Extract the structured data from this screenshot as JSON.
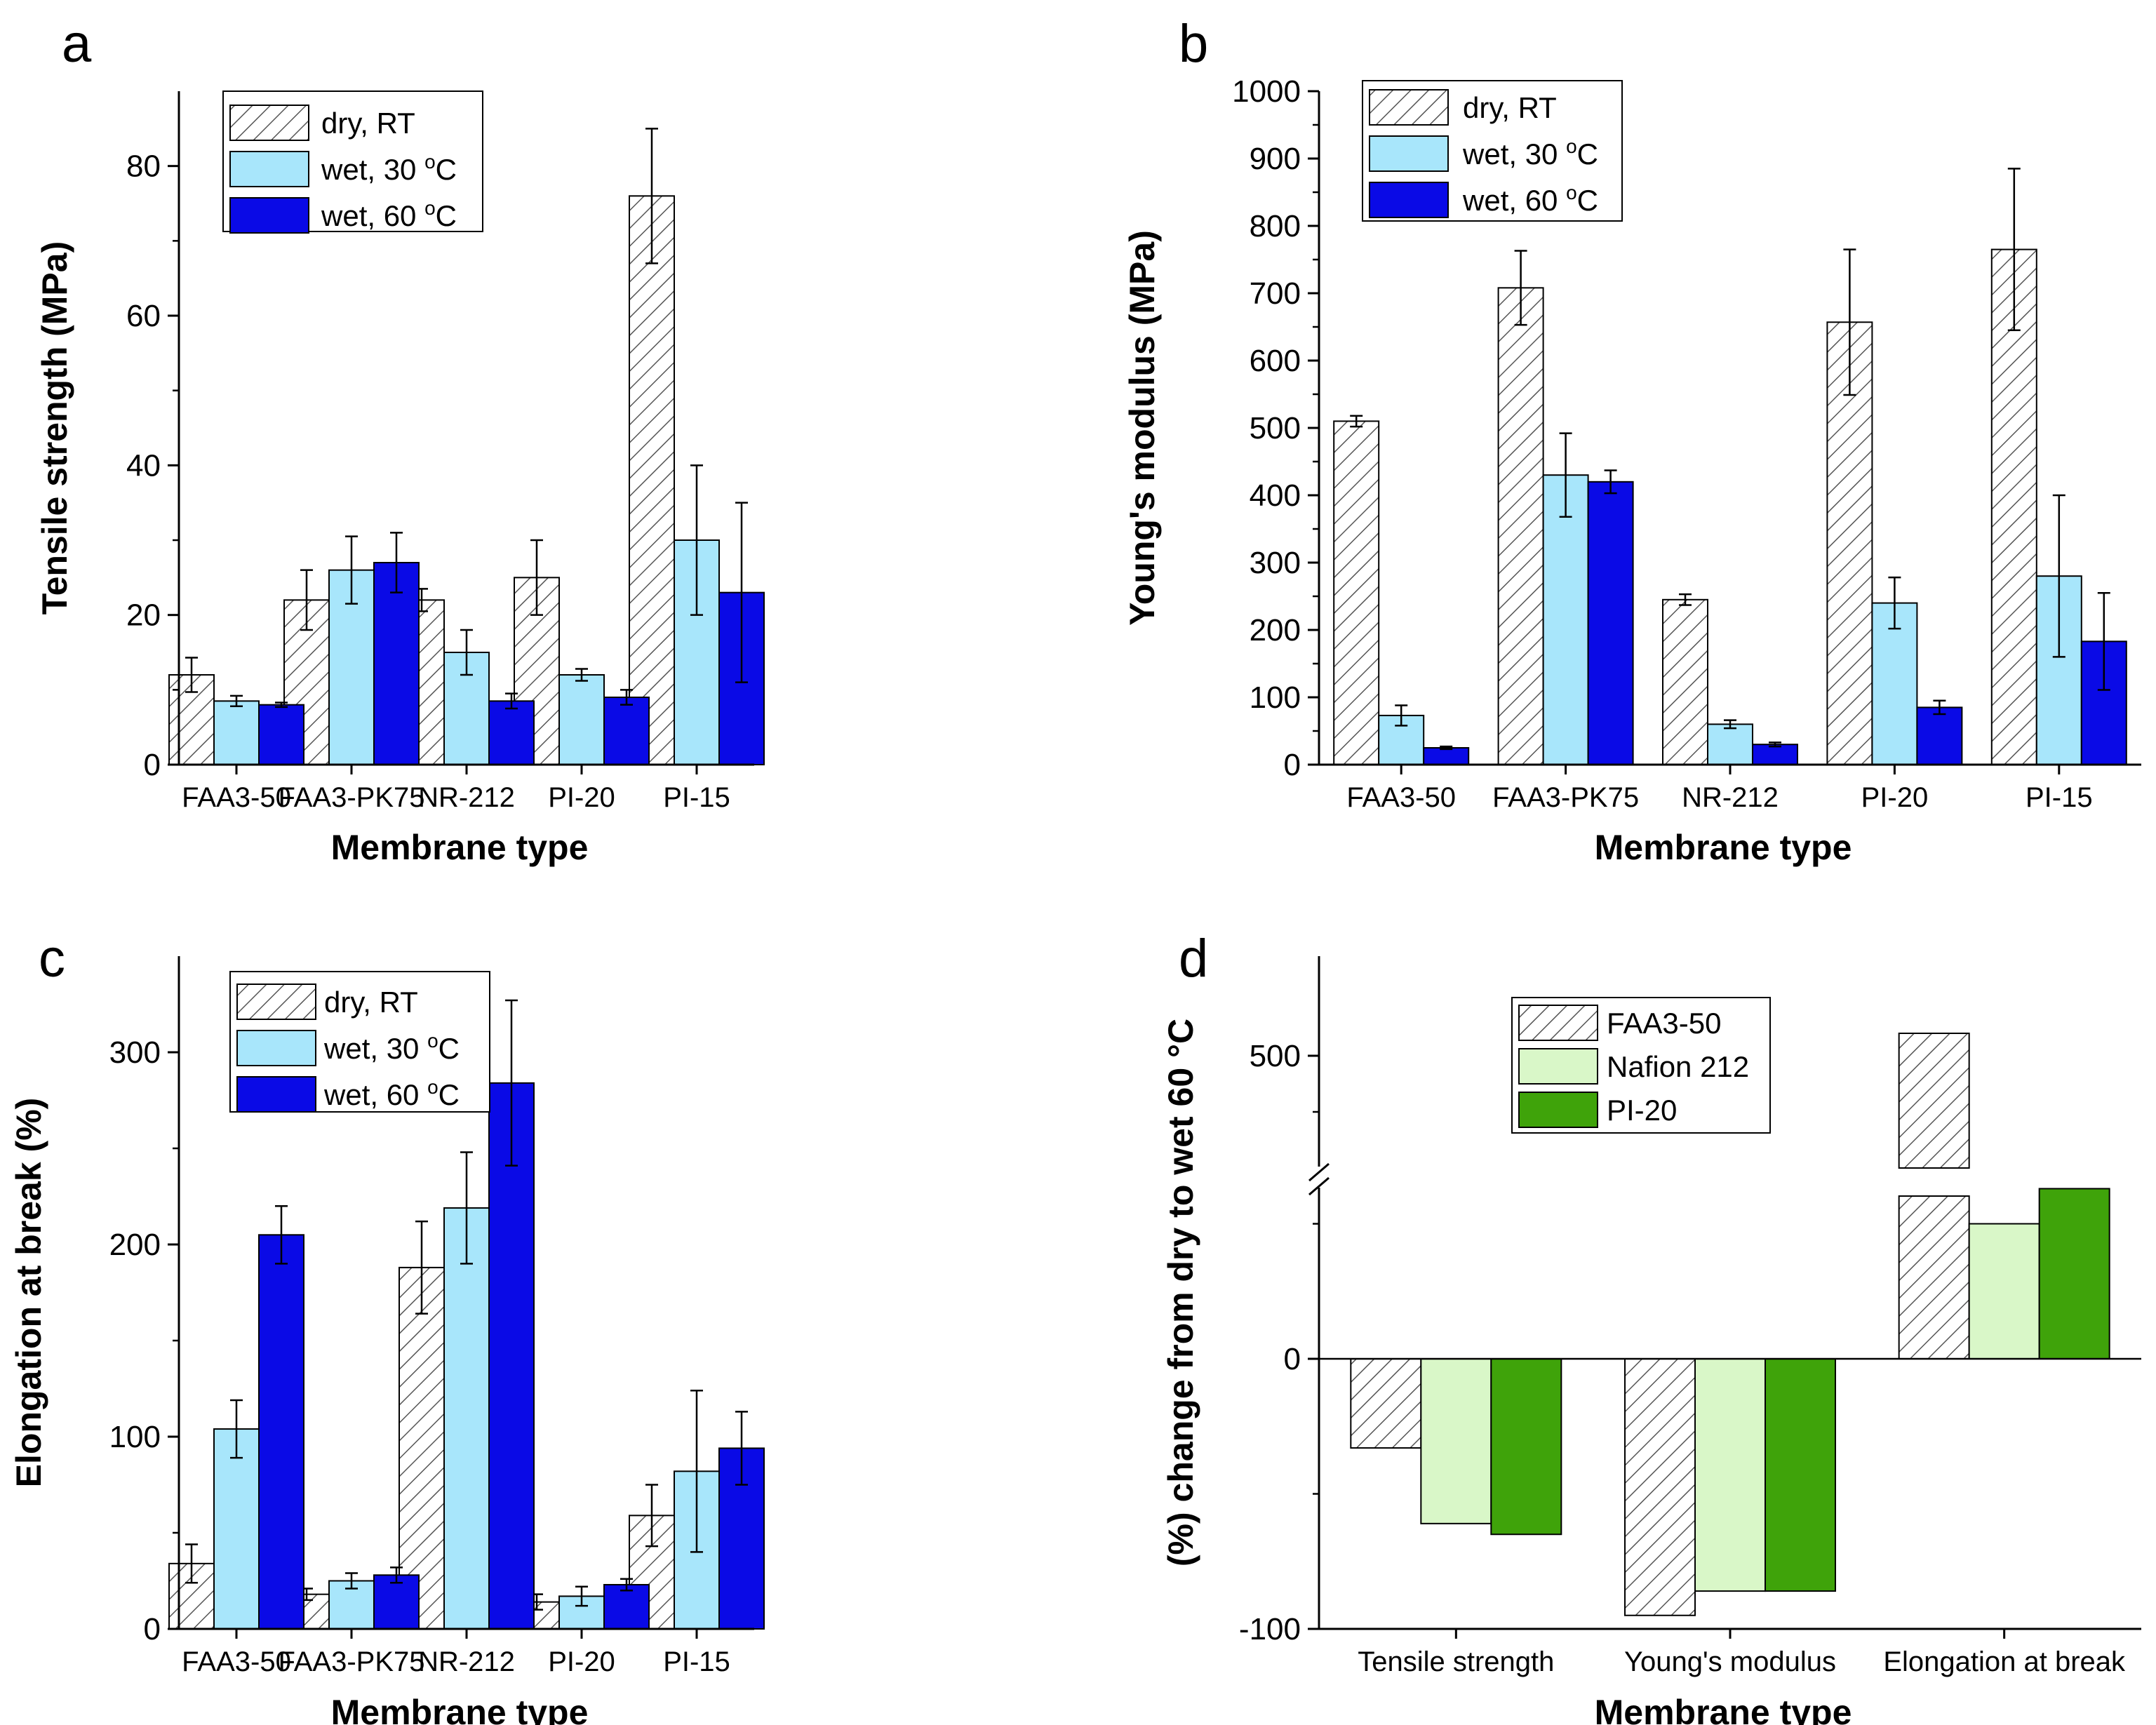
{
  "chart_data": [
    {
      "panel": "a",
      "type": "bar",
      "categories": [
        "FAA3-50",
        "FAA3-PK75",
        "NR-212",
        "PI-20",
        "PI-15"
      ],
      "series": [
        {
          "name": "dry, RT",
          "values": [
            12,
            22,
            22,
            25,
            76
          ],
          "errors": [
            2.3,
            4,
            1.5,
            5,
            9
          ],
          "fill": "hatch"
        },
        {
          "name": "wet, 30 °C",
          "legend_base": "wet, 30 ",
          "legend_sup": "o",
          "legend_tail": "C",
          "values": [
            8.5,
            26,
            15,
            12,
            30
          ],
          "errors": [
            0.7,
            4.5,
            3,
            0.8,
            10
          ],
          "color": "#a8e6fb"
        },
        {
          "name": "wet, 60 °C",
          "legend_base": "wet, 60 ",
          "legend_sup": "o",
          "legend_tail": "C",
          "values": [
            8,
            27,
            8.5,
            9,
            23
          ],
          "errors": [
            0.3,
            4,
            1,
            1,
            12
          ],
          "color": "#0a0ae6"
        }
      ],
      "xlabel": "Membrane type",
      "ylabel": "Tensile strength (MPa)",
      "ylim": [
        0,
        90
      ],
      "yticks": [
        0,
        20,
        40,
        60,
        80
      ],
      "legend": "top-left"
    },
    {
      "panel": "b",
      "type": "bar",
      "categories": [
        "FAA3-50",
        "FAA3-PK75",
        "NR-212",
        "PI-20",
        "PI-15"
      ],
      "series": [
        {
          "name": "dry, RT",
          "values": [
            510,
            708,
            245,
            657,
            765
          ],
          "errors": [
            8,
            55,
            8,
            108,
            120
          ],
          "fill": "hatch"
        },
        {
          "name": "wet, 30 °C",
          "legend_base": "wet, 30 ",
          "legend_sup": "o",
          "legend_tail": "C",
          "values": [
            73,
            430,
            60,
            240,
            280
          ],
          "errors": [
            15,
            62,
            6,
            38,
            120
          ],
          "color": "#a8e6fb"
        },
        {
          "name": "wet, 60 °C",
          "legend_base": "wet, 60 ",
          "legend_sup": "o",
          "legend_tail": "C",
          "values": [
            25,
            420,
            30,
            85,
            183
          ],
          "errors": [
            2,
            17,
            3,
            10,
            72
          ],
          "color": "#0a0ae6"
        }
      ],
      "xlabel": "Membrane type",
      "ylabel": "Young's modulus (MPa)",
      "ylim": [
        0,
        1000
      ],
      "yticks": [
        0,
        100,
        200,
        300,
        400,
        500,
        600,
        700,
        800,
        900,
        1000
      ],
      "legend": "top-left"
    },
    {
      "panel": "c",
      "type": "bar",
      "categories": [
        "FAA3-50",
        "FAA3-PK75",
        "NR-212",
        "PI-20",
        "PI-15"
      ],
      "series": [
        {
          "name": "dry, RT",
          "values": [
            34,
            18,
            188,
            14,
            59
          ],
          "errors": [
            10,
            3,
            24,
            4,
            16
          ],
          "fill": "hatch"
        },
        {
          "name": "wet, 30 °C",
          "legend_base": "wet, 30 ",
          "legend_sup": "o",
          "legend_tail": "C",
          "values": [
            104,
            25,
            219,
            17,
            82
          ],
          "errors": [
            15,
            4,
            29,
            5,
            42
          ],
          "color": "#a8e6fb"
        },
        {
          "name": "wet, 60 °C",
          "legend_base": "wet, 60 ",
          "legend_sup": "o",
          "legend_tail": "C",
          "values": [
            205,
            28,
            284,
            23,
            94
          ],
          "errors": [
            15,
            4,
            43,
            3,
            19
          ],
          "color": "#0a0ae6"
        }
      ],
      "xlabel": "Membrane type",
      "ylabel": "Elongation at break (%)",
      "ylim": [
        0,
        350
      ],
      "yticks": [
        0,
        100,
        200,
        300
      ],
      "legend": "top-left"
    },
    {
      "panel": "d",
      "type": "bar",
      "categories": [
        "Tensile strength",
        "Young's modulus",
        "Elongation at break"
      ],
      "series": [
        {
          "name": "FAA3-50",
          "values": [
            -33,
            -95,
            520
          ],
          "fill": "hatch"
        },
        {
          "name": "Nafion 212",
          "values": [
            -61,
            -86,
            50
          ],
          "color": "#d9f7c8"
        },
        {
          "name": "PI-20",
          "values": [
            -65,
            -86,
            63
          ],
          "color": "#3fa30a"
        }
      ],
      "xlabel": "Membrane type",
      "ylabel": "(%) change from dry to wet 60 °C",
      "ylim": [
        -100,
        550
      ],
      "axis_break": [
        100,
        400
      ],
      "yticks": [
        -100,
        0,
        500
      ],
      "legend": "top-center"
    }
  ]
}
